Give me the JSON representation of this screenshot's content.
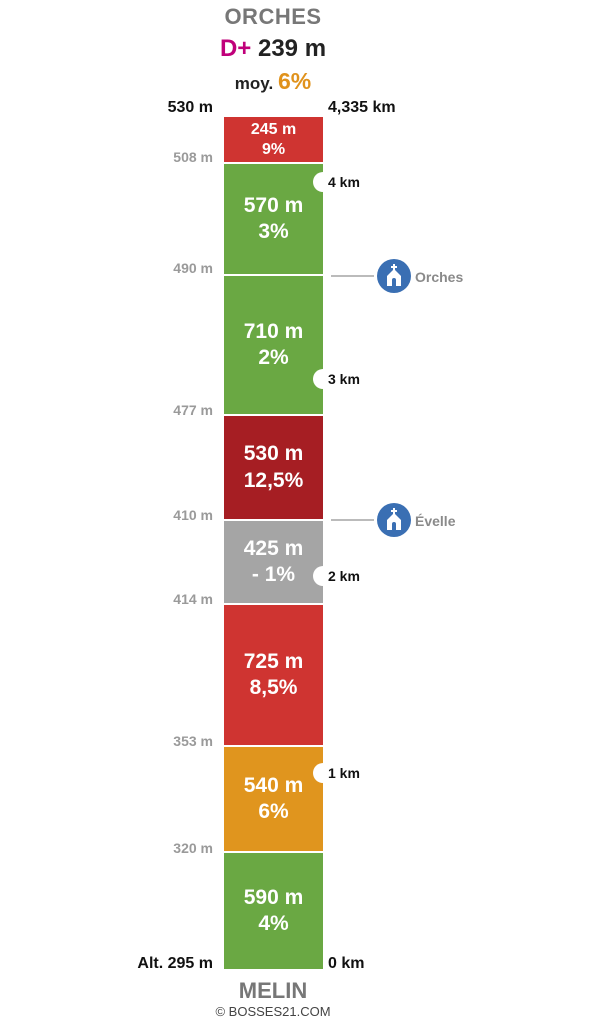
{
  "header": {
    "top_name": "ORCHES",
    "dplus_prefix": "D+",
    "dplus_value": "239 m",
    "avg_prefix": "moy.",
    "avg_value": "6%"
  },
  "footer": {
    "bottom_name": "MELIN",
    "credit": "© BOSSES21.COM"
  },
  "top_altitude": "530 m",
  "top_distance": "4,335 km",
  "segments": [
    {
      "length": "245 m",
      "grade": "9%",
      "color": "#cf3431"
    },
    {
      "length": "570 m",
      "grade": "3%",
      "color": "#6aa843"
    },
    {
      "length": "710 m",
      "grade": "2%",
      "color": "#6aa843"
    },
    {
      "length": "530 m",
      "grade": "12,5%",
      "color": "#a61e23"
    },
    {
      "length": "425 m",
      "grade": "- 1%",
      "color": "#a5a5a5"
    },
    {
      "length": "725 m",
      "grade": "8,5%",
      "color": "#cf3431"
    },
    {
      "length": "540 m",
      "grade": "6%",
      "color": "#e0951e"
    },
    {
      "length": "590 m",
      "grade": "4%",
      "color": "#6aa843"
    }
  ],
  "altitudes": [
    "508 m",
    "490 m",
    "477 m",
    "410 m",
    "414 m",
    "353 m",
    "320 m",
    "Alt. 295 m"
  ],
  "km_markers": [
    "4 km",
    "3 km",
    "2 km",
    "1 km",
    "0 km"
  ],
  "pois": [
    {
      "name": "Orches",
      "icon": "church-icon"
    },
    {
      "name": "Évelle",
      "icon": "church-icon"
    }
  ]
}
